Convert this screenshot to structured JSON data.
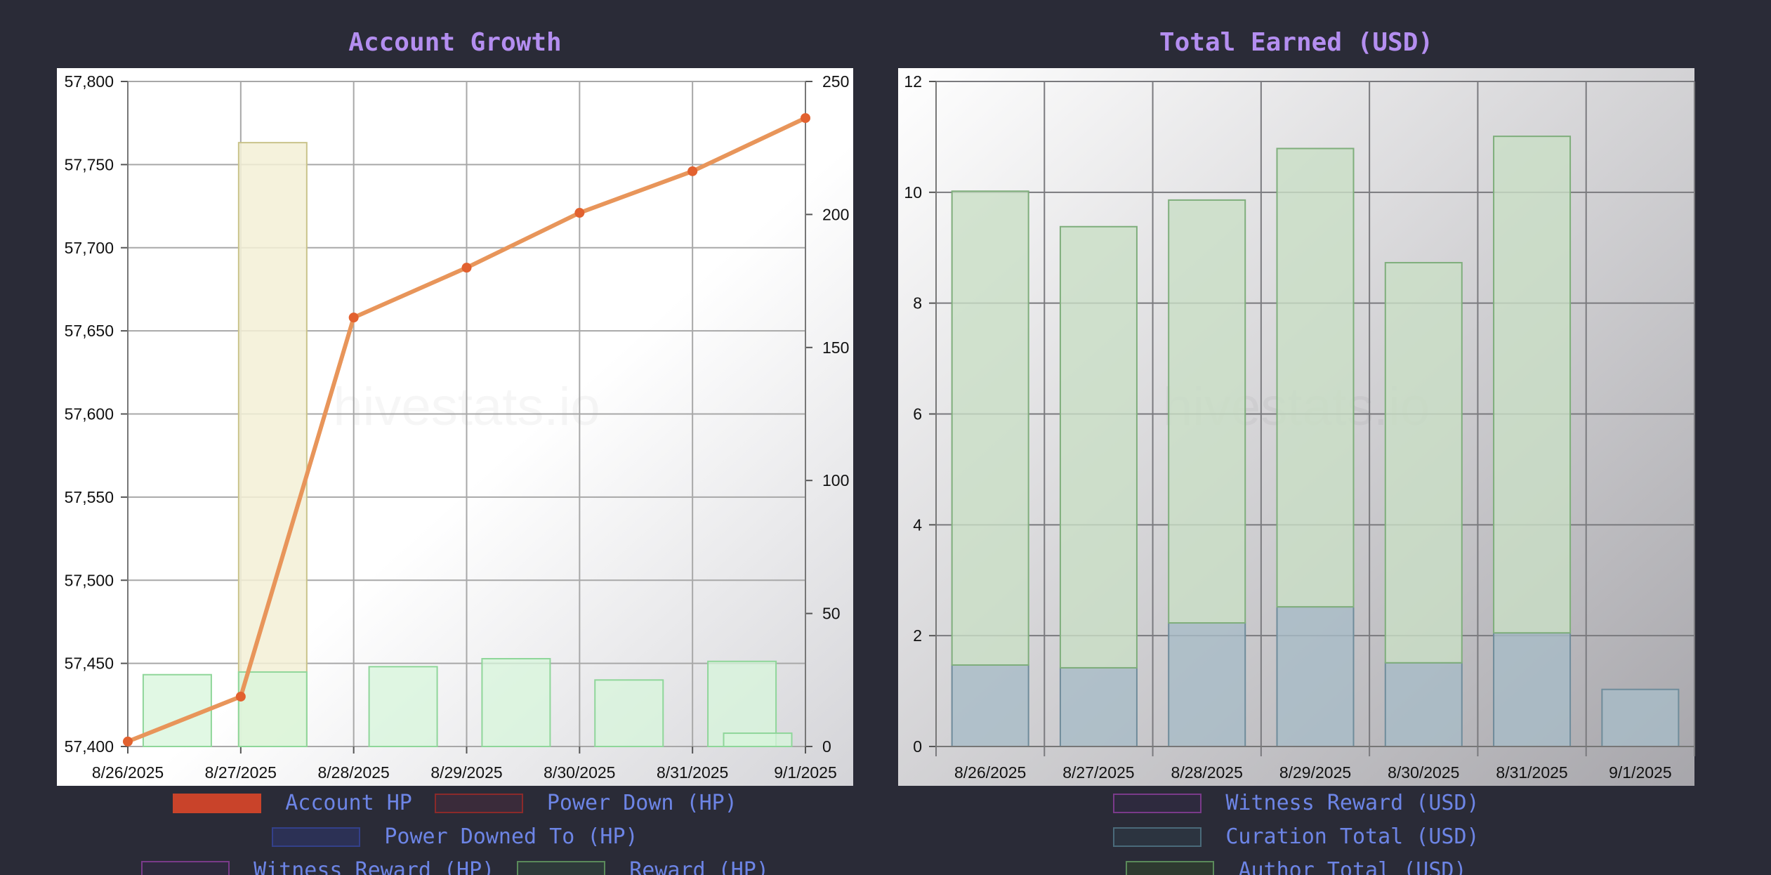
{
  "chart_data": [
    {
      "type": "line+bar",
      "title": "Account Growth",
      "categories": [
        "8/26/2025",
        "8/27/2025",
        "8/28/2025",
        "8/29/2025",
        "8/30/2025",
        "8/31/2025",
        "9/1/2025"
      ],
      "y_left": {
        "ylim": [
          57400,
          57800
        ],
        "ticks": [
          "57,400",
          "57,450",
          "57,500",
          "57,550",
          "57,600",
          "57,650",
          "57,700",
          "57,750",
          "57,800"
        ]
      },
      "y_right": {
        "ylim": [
          0,
          250
        ],
        "ticks": [
          "0",
          "50",
          "100",
          "150",
          "200",
          "250"
        ]
      },
      "series": [
        {
          "name": "Account HP",
          "kind": "line",
          "axis": "left",
          "color": "#e8955a",
          "point_color": "#e2612f",
          "values": [
            57403,
            57430,
            57658,
            57688,
            57721,
            57746,
            57778
          ]
        },
        {
          "name": "Witness Reward (HP)",
          "kind": "bar",
          "axis": "right",
          "color": "#f3f0d6",
          "stroke": "#c9c38a",
          "values": [
            0,
            227,
            0,
            0,
            0,
            0,
            0
          ]
        },
        {
          "name": "Reward (HP)",
          "kind": "bar",
          "axis": "right",
          "color": "#d7f5db",
          "stroke": "#8fd69a",
          "values": [
            27,
            28,
            30,
            33,
            25,
            32,
            5
          ]
        }
      ],
      "grid": true,
      "watermark": "hivestats.io",
      "legend": [
        {
          "label": "Account HP",
          "fill": "#c9432a",
          "border": "#c9432a"
        },
        {
          "label": "Power Down (HP)",
          "fill": "#3a2b3a",
          "border": "#8b2a2a"
        },
        {
          "label": "Power Downed To (HP)",
          "fill": "#2c3155",
          "border": "#33408a"
        },
        {
          "label": "Witness Reward (HP)",
          "fill": "#2e2a3e",
          "border": "#7a3a8a"
        },
        {
          "label": "Reward (HP)",
          "fill": "#2e3a3a",
          "border": "#5a8a5a"
        }
      ]
    },
    {
      "type": "stacked-bar",
      "title": "Total Earned (USD)",
      "categories": [
        "8/26/2025",
        "8/27/2025",
        "8/28/2025",
        "8/29/2025",
        "8/30/2025",
        "8/31/2025",
        "9/1/2025"
      ],
      "ylim": [
        0,
        12
      ],
      "ticks": [
        "0",
        "2",
        "4",
        "6",
        "8",
        "10",
        "12"
      ],
      "series": [
        {
          "name": "Curation Total (USD)",
          "color": "#a7bcc7",
          "stroke": "#6f8c9b",
          "values": [
            1.47,
            1.42,
            2.23,
            2.52,
            1.51,
            2.05,
            1.03
          ]
        },
        {
          "name": "Author Total (USD)",
          "color": "#c9dfc6",
          "stroke": "#7fae7c",
          "values": [
            8.55,
            7.96,
            7.63,
            8.27,
            7.22,
            8.96,
            0
          ]
        }
      ],
      "grid": true,
      "watermark": "hivestats.io",
      "legend": [
        {
          "label": "Witness Reward (USD)",
          "fill": "#2e2a3e",
          "border": "#7a3a8a"
        },
        {
          "label": "Curation Total (USD)",
          "fill": "#2c3440",
          "border": "#4a6a7a"
        },
        {
          "label": "Author Total (USD)",
          "fill": "#2e3a30",
          "border": "#5a8a5a"
        }
      ]
    }
  ]
}
